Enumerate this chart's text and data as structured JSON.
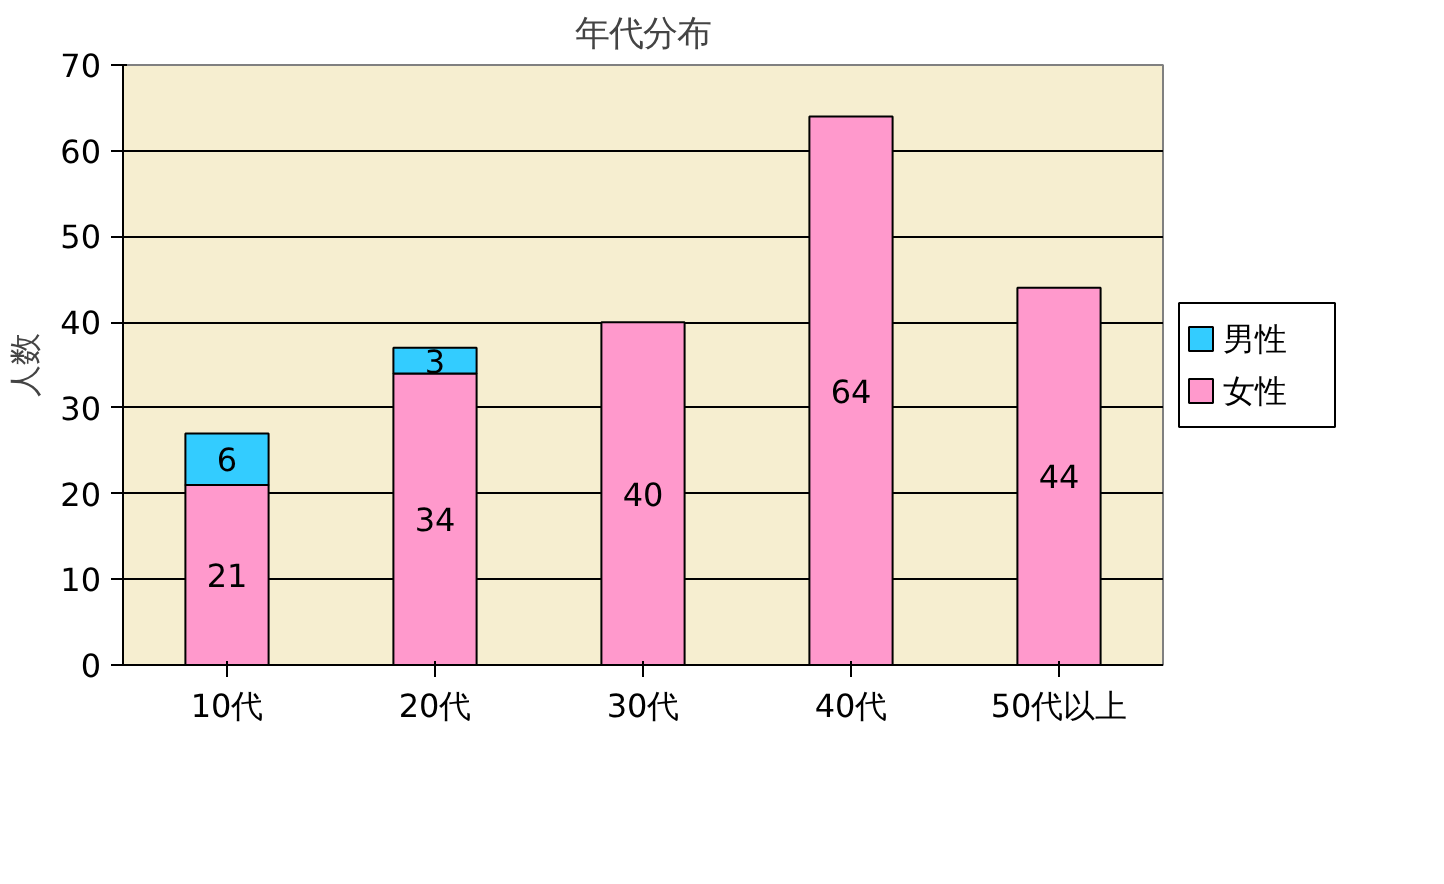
{
  "chart_data": {
    "type": "bar",
    "title": "年代分布",
    "ylabel": "人数",
    "stacked": true,
    "categories": [
      "10代",
      "20代",
      "30代",
      "40代",
      "50代以上"
    ],
    "series": [
      {
        "name": "女性",
        "color": "#ff99cc",
        "values": [
          21,
          34,
          40,
          64,
          44
        ]
      },
      {
        "name": "男性",
        "color": "#33ccff",
        "values": [
          6,
          3,
          null,
          null,
          null
        ]
      }
    ],
    "ylim": [
      0,
      70
    ],
    "yticks": [
      0,
      10,
      20,
      30,
      40,
      50,
      60,
      70
    ],
    "grid": "y",
    "legend": "right",
    "data_labels": true
  }
}
